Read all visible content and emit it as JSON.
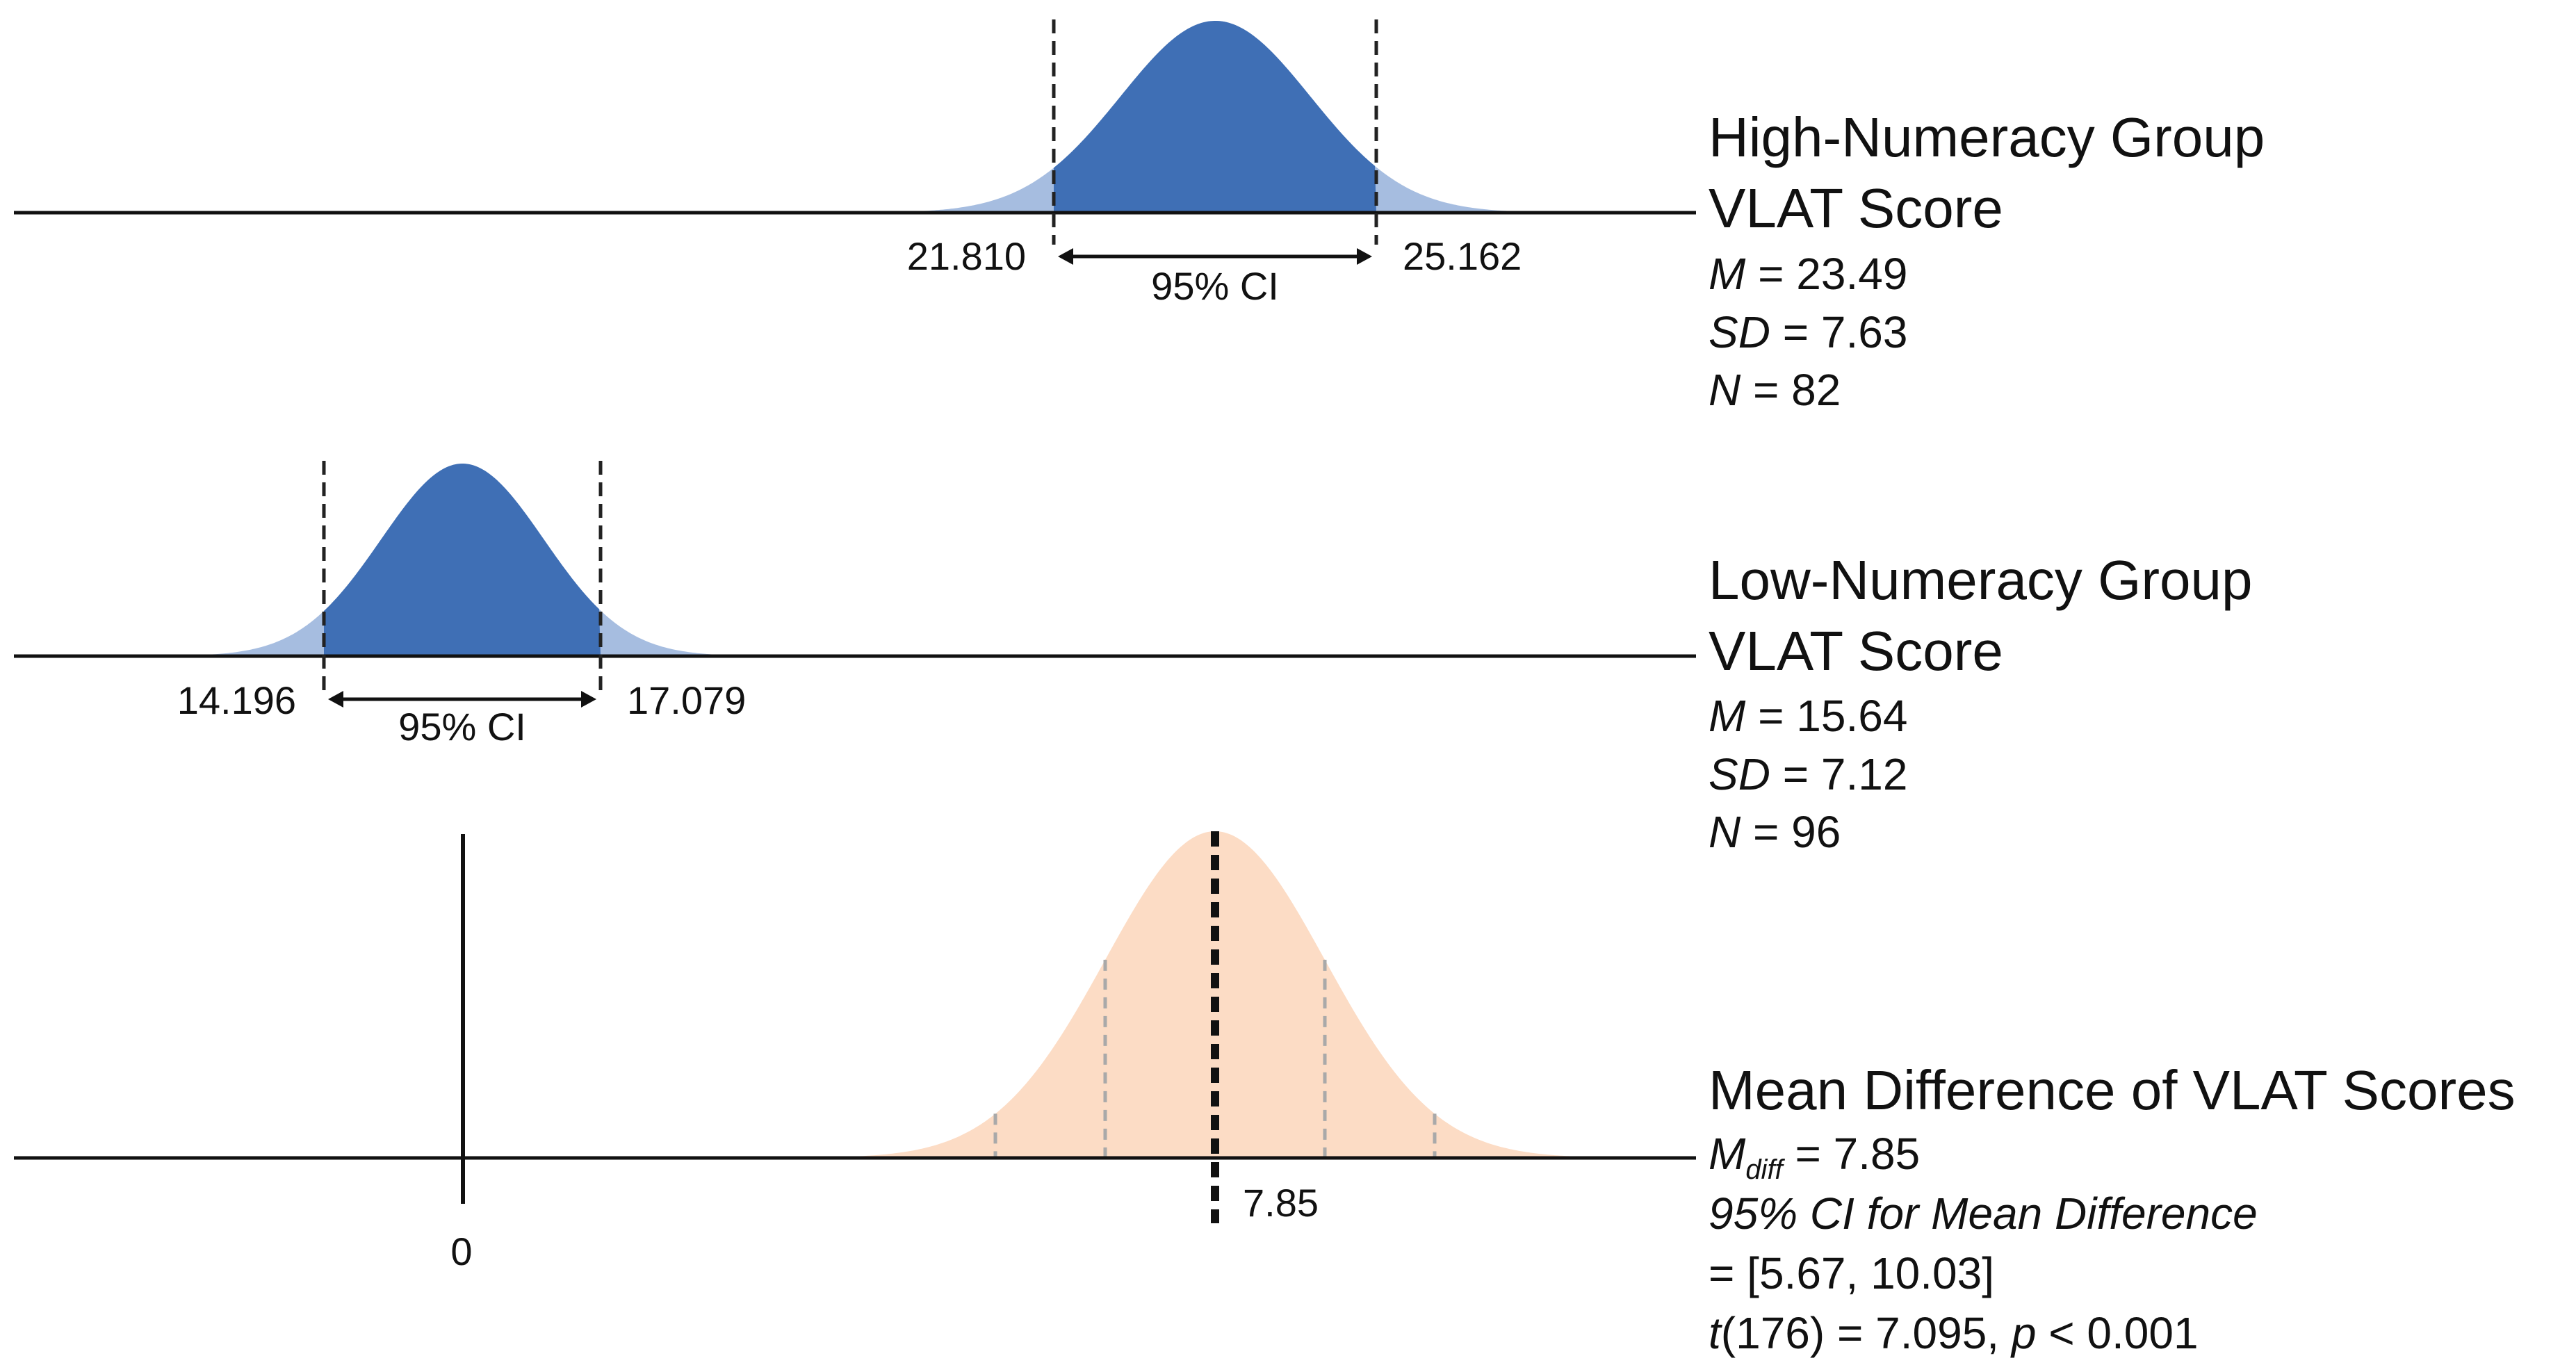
{
  "colors": {
    "group_fill": "#3f6fb5",
    "group_tail": "#a6bde0",
    "diff_fill": "#fcdcc5",
    "axis": "#111111",
    "dash": "#222222",
    "diff_dash": "#a9a9a9"
  },
  "chart_data": [
    {
      "type": "area",
      "panel": "high",
      "title": "High-Numeracy Group",
      "subtitle": "VLAT Score",
      "mean": 23.49,
      "sd": 7.63,
      "n": 82,
      "ci": [
        21.81,
        25.162
      ],
      "ci_labels": [
        "21.810",
        "25.162"
      ],
      "ci_text": "95% CI",
      "stats": [
        {
          "sym": "M",
          "sub": "",
          "rest": " = 23.49"
        },
        {
          "sym": "SD",
          "sub": "",
          "rest": " = 7.63"
        },
        {
          "sym": "N",
          "sub": "",
          "rest": " = 82"
        }
      ]
    },
    {
      "type": "area",
      "panel": "low",
      "title": "Low-Numeracy Group",
      "subtitle": "VLAT Score",
      "mean": 15.64,
      "sd": 7.12,
      "n": 96,
      "ci": [
        14.196,
        17.079
      ],
      "ci_labels": [
        "14.196",
        "17.079"
      ],
      "ci_text": "95% CI",
      "stats": [
        {
          "sym": "M",
          "sub": "",
          "rest": " = 15.64"
        },
        {
          "sym": "SD",
          "sub": "",
          "rest": " = 7.12"
        },
        {
          "sym": "N",
          "sub": "",
          "rest": " = 96"
        }
      ]
    },
    {
      "type": "area",
      "panel": "diff",
      "title": "Mean Difference of VLAT Scores",
      "mean_diff": 7.85,
      "mean_label": "7.85",
      "zero_label": "0",
      "ci": [
        5.67,
        10.03
      ],
      "stats": [
        {
          "sym": "M",
          "sub": "diff",
          "rest": " = 7.85"
        }
      ],
      "ci_heading": "95% CI for Mean Difference",
      "ci_line": "= [5.67, 10.03]",
      "test": {
        "sym1": "t",
        "mid": "(176) = 7.095, ",
        "sym2": "p",
        "end": " < 0.001"
      }
    }
  ]
}
